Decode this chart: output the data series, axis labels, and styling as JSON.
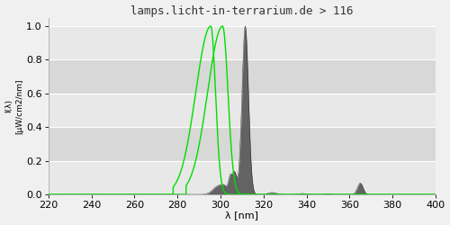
{
  "title": "lamps.licht-in-terrarium.de > 116",
  "xlabel": "λ [nm]",
  "ylabel_line1": "I(λ)",
  "ylabel_line2": "[µW/cm2/nm]",
  "xlim": [
    220,
    400
  ],
  "ylim": [
    0.0,
    1.05
  ],
  "yticks": [
    0.0,
    0.2,
    0.4,
    0.6,
    0.8,
    1.0
  ],
  "xticks": [
    220,
    240,
    260,
    280,
    300,
    320,
    340,
    360,
    380,
    400
  ],
  "bg_color": "#f0f0f0",
  "plot_bg_alt1": "#e8e8e8",
  "plot_bg_alt2": "#d8d8d8",
  "spectrum_color": "#555555",
  "green_color": "#00dd00",
  "title_fontsize": 9,
  "axis_fontsize": 8,
  "tick_fontsize": 8
}
